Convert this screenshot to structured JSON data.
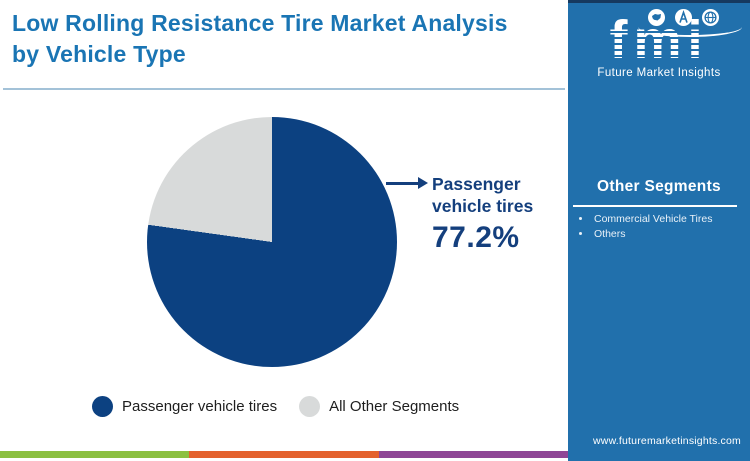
{
  "header": {
    "title": "Low Rolling Resistance Tire Market Analysis by Vehicle Type"
  },
  "logo": {
    "abbr": "fmi",
    "name": "Future Market Insights",
    "icons": [
      "map-icon",
      "compass-icon",
      "globe-icon"
    ]
  },
  "sidebar": {
    "heading": "Other Segments",
    "items": [
      "Commercial Vehicle Tires",
      "Others"
    ],
    "website": "www.futuremarketinsights.com"
  },
  "callout": {
    "label": "Passenger vehicle tires",
    "value": "77.2%"
  },
  "legend": [
    {
      "label": "Passenger vehicle tires",
      "color": "#0c4181"
    },
    {
      "label": "All Other Segments",
      "color": "#d8dada"
    }
  ],
  "chart_data": {
    "type": "pie",
    "title": "Low Rolling Resistance Tire Market Analysis by Vehicle Type",
    "labels": [
      "Passenger vehicle tires",
      "All Other Segments"
    ],
    "values": [
      77.2,
      22.8
    ],
    "unit": "%",
    "colors": [
      "#0c4181",
      "#d8dada"
    ],
    "start_angle_deg": 0,
    "direction": "clockwise",
    "legend_position": "bottom",
    "annotations": [
      {
        "label": "Passenger vehicle tires",
        "value": "77.2%"
      }
    ]
  },
  "theme": {
    "title_color": "#1a75b4",
    "divider_color": "#a3c2d8",
    "callout_color": "#143f7d",
    "sidebar_bg": "#2170ac",
    "sidebar_topbar": "#16395f",
    "footer_colors": [
      "#8cc041",
      "#e4612d",
      "#8f4696"
    ]
  }
}
